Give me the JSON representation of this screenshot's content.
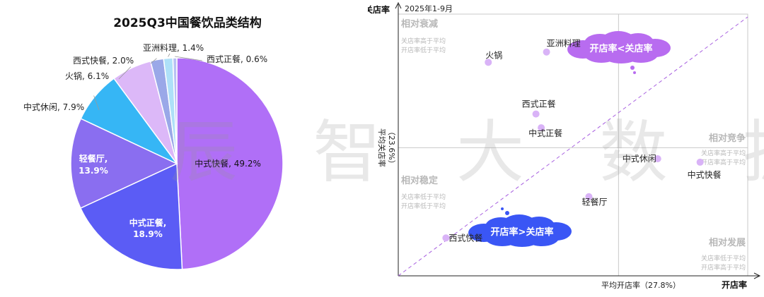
{
  "watermark": "辰 智 大 数 据",
  "chart_data": [
    {
      "type": "pie",
      "title": "2025Q3中国餐饮品类结构",
      "slices": [
        {
          "name": "中式快餐",
          "value": 49.2,
          "label": "中式快餐, 49.2%",
          "color": "#b06ff7"
        },
        {
          "name": "中式正餐",
          "value": 18.9,
          "label_line1": "中式正餐,",
          "label_line2": "18.9%",
          "color": "#5b5cf5"
        },
        {
          "name": "轻餐厅",
          "value": 13.9,
          "label_line1": "轻餐厅,",
          "label_line2": "13.9%",
          "color": "#8a6ef0"
        },
        {
          "name": "中式休闲",
          "value": 7.9,
          "label": "中式休闲, 7.9%",
          "color": "#36b6f5"
        },
        {
          "name": "火锅",
          "value": 6.1,
          "label": "火锅, 6.1%",
          "color": "#dcb8f8"
        },
        {
          "name": "西式快餐",
          "value": 2.0,
          "label": "西式快餐, 2.0%",
          "color": "#9aa8e8"
        },
        {
          "name": "亚洲料理",
          "value": 1.4,
          "label": "亚洲料理, 1.4%",
          "color": "#aee0f8"
        },
        {
          "name": "西式正餐",
          "value": 0.6,
          "label": "西式正餐, 0.6%",
          "color": "#b8c0f4"
        }
      ]
    },
    {
      "type": "scatter",
      "subtitle": "2025年1-9月",
      "xlabel": "开店率",
      "ylabel": "关店率",
      "x_ref_label": "平均开店率（27.8%）",
      "y_ref_label_lines": [
        "平均关店率",
        "（23.6%）"
      ],
      "x_ref": 27.8,
      "y_ref": 23.6,
      "quadrants": {
        "top_left": {
          "title": "相对衰减",
          "line1": "关店率高于平均",
          "line2": "开店率低于平均"
        },
        "top_right": {
          "title": "相对竞争",
          "line1": "关店率高于平均",
          "line2": "开店率高于平均"
        },
        "bottom_left": {
          "title": "相对稳定",
          "line1": "关店率低于平均",
          "line2": "开店率低于平均"
        },
        "bottom_right": {
          "title": "相对发展",
          "line1": "关店率低于平均",
          "line2": "开店率高于平均"
        }
      },
      "clouds": {
        "upper": "开店率<关店率",
        "lower": "开店率>关店率"
      },
      "points": [
        {
          "name": "亚洲料理",
          "x": 21.0,
          "y": 37.5
        },
        {
          "name": "火锅",
          "x": 15.5,
          "y": 36.0
        },
        {
          "name": "西式正餐",
          "x": 20.0,
          "y": 28.5
        },
        {
          "name": "中式正餐",
          "x": 20.5,
          "y": 26.5
        },
        {
          "name": "中式休闲",
          "x": 31.5,
          "y": 22.0
        },
        {
          "name": "中式快餐",
          "x": 35.5,
          "y": 21.5
        },
        {
          "name": "轻餐厅",
          "x": 25.0,
          "y": 16.5
        },
        {
          "name": "西式快餐",
          "x": 11.5,
          "y": 10.5
        }
      ],
      "colors": {
        "point": "#d9b3f7",
        "cloud_upper": "#b86cf0",
        "cloud_lower": "#3a56f5",
        "diagonal": "#a860e0",
        "quadrant_text": "#b8b8b8"
      }
    }
  ]
}
